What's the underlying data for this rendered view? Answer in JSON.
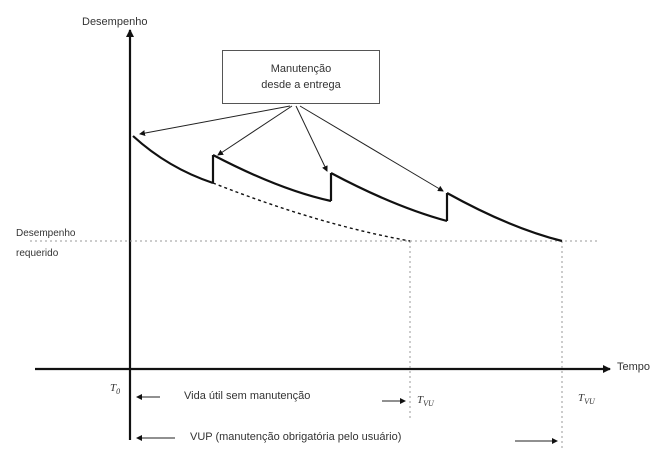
{
  "diagram": {
    "y_axis_label": "Desempenho",
    "x_axis_label": "Tempo",
    "threshold_label_line1": "Desempenho",
    "threshold_label_line2": "requerido",
    "callout_line1": "Manutenção",
    "callout_line2": "desde a entrega",
    "t0_label": "T",
    "t0_sub": "0",
    "t1_label": "T",
    "t1_sub": "VU",
    "t2_label": "T",
    "t2_sub": "VU",
    "life_no_maint_label": "Vida útil sem manutenção",
    "vup_label": "VUP (manutenção obrigatória pelo usuário)"
  }
}
